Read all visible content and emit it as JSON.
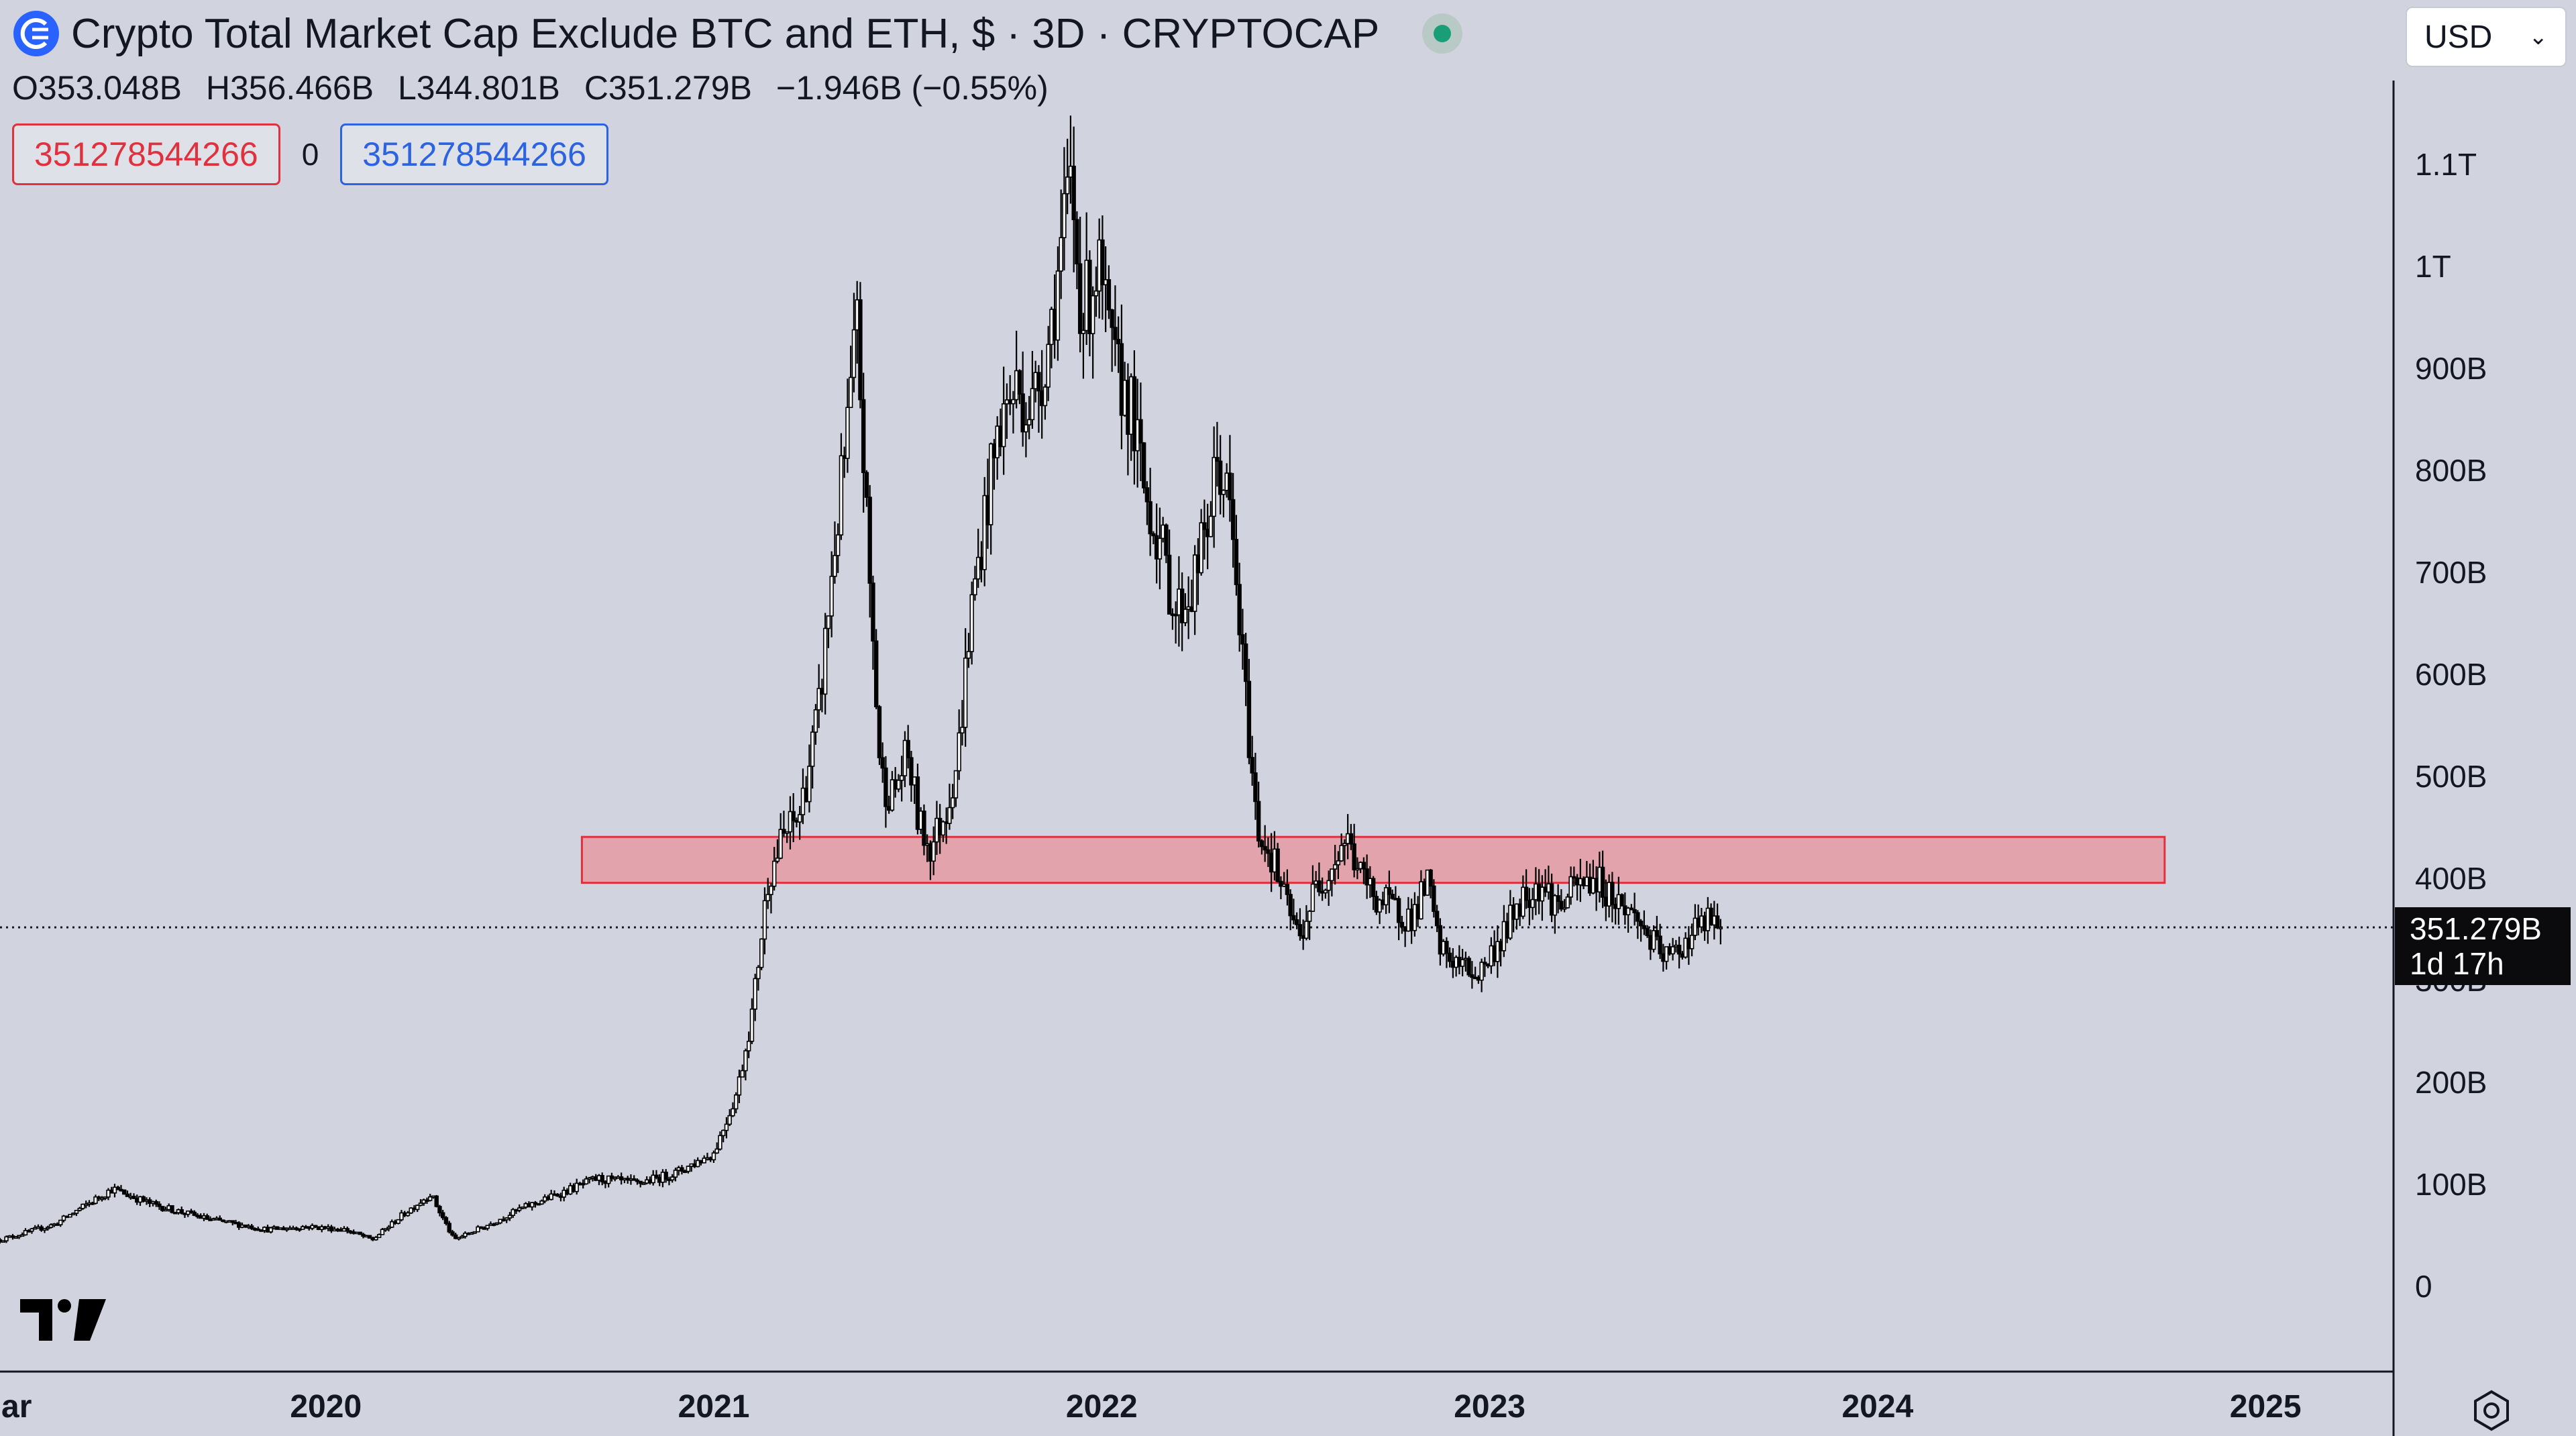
{
  "header": {
    "title": "Crypto Total Market Cap Exclude BTC and ETH, $ · 3D · CRYPTOCAP",
    "ohlc": {
      "open": "O353.048B",
      "high": "H356.466B",
      "low": "L344.801B",
      "close": "C351.279B",
      "change": "−1.946B (−0.55%)"
    },
    "value_box_left": "351278544266",
    "value_box_mid": "0",
    "value_box_right": "351278544266",
    "currency": "USD"
  },
  "price_tag": {
    "price": "351.279B",
    "countdown": "1d 17h"
  },
  "icons": {
    "logo": "tradingview-logo-icon",
    "currency_caret": "chevron-down-icon",
    "settings": "settings-gear-icon",
    "symbol": "cryptocap-symbol-icon"
  },
  "colors": {
    "background": "#d1d4de",
    "candle": "#000000",
    "zone_fill": "#e3a3ad",
    "zone_border": "#e0313e",
    "axis_text": "#131722",
    "live": "#1a9e77"
  },
  "chart_data": {
    "type": "candlestick",
    "y_unit": "USD",
    "ylim": [
      -30,
      1130
    ],
    "y_ticks": [
      {
        "value": 0,
        "label": "0"
      },
      {
        "value": 100,
        "label": "100B"
      },
      {
        "value": 200,
        "label": "200B"
      },
      {
        "value": 300,
        "label": "300B"
      },
      {
        "value": 400,
        "label": "400B"
      },
      {
        "value": 500,
        "label": "500B"
      },
      {
        "value": 600,
        "label": "600B"
      },
      {
        "value": 700,
        "label": "700B"
      },
      {
        "value": 800,
        "label": "800B"
      },
      {
        "value": 900,
        "label": "900B"
      },
      {
        "value": 1000,
        "label": "1T"
      },
      {
        "value": 1100,
        "label": "1.1T"
      }
    ],
    "xlim": [
      2019.16,
      2025.33
    ],
    "x_ticks": [
      {
        "value": 2019.16,
        "label": "ar"
      },
      {
        "value": 2020,
        "label": "2020"
      },
      {
        "value": 2021,
        "label": "2021"
      },
      {
        "value": 2022,
        "label": "2022"
      },
      {
        "value": 2023,
        "label": "2023"
      },
      {
        "value": 2024,
        "label": "2024"
      },
      {
        "value": 2025,
        "label": "2025"
      }
    ],
    "price_line": 351.279,
    "resistance_zone": {
      "x_start": 2020.66,
      "x_end": 2024.74,
      "y_low": 395,
      "y_high": 440
    },
    "series": [
      {
        "values": [
          [
            2019.16,
            45
          ],
          [
            2019.3,
            60
          ],
          [
            2019.45,
            95
          ],
          [
            2019.55,
            80
          ],
          [
            2019.7,
            65
          ],
          [
            2019.85,
            55
          ],
          [
            2019.95,
            58
          ],
          [
            2020.05,
            55
          ],
          [
            2020.12,
            45
          ],
          [
            2020.2,
            70
          ],
          [
            2020.27,
            90
          ],
          [
            2020.33,
            45
          ],
          [
            2020.42,
            60
          ],
          [
            2020.5,
            75
          ],
          [
            2020.6,
            90
          ],
          [
            2020.7,
            105
          ],
          [
            2020.8,
            100
          ],
          [
            2020.9,
            110
          ],
          [
            2020.95,
            120
          ],
          [
            2021.0,
            130
          ],
          [
            2021.06,
            190
          ],
          [
            2021.1,
            270
          ],
          [
            2021.14,
            400
          ],
          [
            2021.18,
            440
          ],
          [
            2021.22,
            460
          ],
          [
            2021.27,
            560
          ],
          [
            2021.31,
            720
          ],
          [
            2021.34,
            820
          ],
          [
            2021.37,
            940
          ],
          [
            2021.4,
            700
          ],
          [
            2021.43,
            500
          ],
          [
            2021.46,
            480
          ],
          [
            2021.5,
            520
          ],
          [
            2021.53,
            450
          ],
          [
            2021.56,
            430
          ],
          [
            2021.6,
            470
          ],
          [
            2021.63,
            520
          ],
          [
            2021.66,
            650
          ],
          [
            2021.7,
            760
          ],
          [
            2021.74,
            850
          ],
          [
            2021.78,
            880
          ],
          [
            2021.82,
            860
          ],
          [
            2021.86,
            920
          ],
          [
            2021.89,
            1000
          ],
          [
            2021.92,
            1080
          ],
          [
            2021.95,
            950
          ],
          [
            2021.99,
            1000
          ],
          [
            2022.03,
            900
          ],
          [
            2022.07,
            870
          ],
          [
            2022.11,
            780
          ],
          [
            2022.15,
            730
          ],
          [
            2022.19,
            660
          ],
          [
            2022.23,
            680
          ],
          [
            2022.27,
            740
          ],
          [
            2022.3,
            810
          ],
          [
            2022.33,
            760
          ],
          [
            2022.37,
            580
          ],
          [
            2022.4,
            450
          ],
          [
            2022.44,
            420
          ],
          [
            2022.47,
            380
          ],
          [
            2022.51,
            340
          ],
          [
            2022.55,
            390
          ],
          [
            2022.59,
            410
          ],
          [
            2022.63,
            440
          ],
          [
            2022.67,
            400
          ],
          [
            2022.71,
            380
          ],
          [
            2022.75,
            370
          ],
          [
            2022.8,
            360
          ],
          [
            2022.84,
            395
          ],
          [
            2022.87,
            330
          ],
          [
            2022.92,
            315
          ],
          [
            2022.97,
            305
          ],
          [
            2023.03,
            340
          ],
          [
            2023.08,
            380
          ],
          [
            2023.13,
            395
          ],
          [
            2023.18,
            370
          ],
          [
            2023.22,
            390
          ],
          [
            2023.27,
            400
          ],
          [
            2023.32,
            380
          ],
          [
            2023.38,
            360
          ],
          [
            2023.43,
            330
          ],
          [
            2023.46,
            320
          ],
          [
            2023.5,
            335
          ],
          [
            2023.53,
            350
          ],
          [
            2023.57,
            358
          ],
          [
            2023.6,
            351.279
          ]
        ]
      }
    ]
  }
}
